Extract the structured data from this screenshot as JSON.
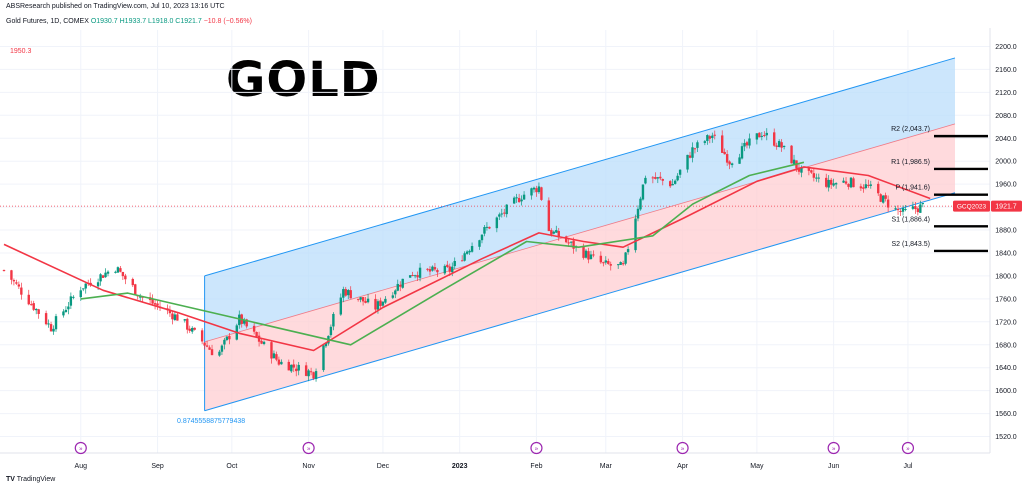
{
  "header": {
    "published": "ABSResearch published on TradingView.com, Jul 10, 2023 13:16 UTC",
    "symbol": "Gold Futures, 1D, COMEX",
    "ohlc_open": "O1930.7",
    "ohlc_rest": "H1933.7 L1918.0 C1921.7",
    "change": "−10.8 (−0.56%)"
  },
  "overlay": {
    "title": "GOLD",
    "level_label": "1950.3",
    "fib_label": "0.8745558875779438"
  },
  "footer": {
    "brand": "TradingView",
    "logo": "TV"
  },
  "price_tag": {
    "ticker": "GCQ2023",
    "price": "1921.7"
  },
  "pivots": [
    {
      "label": "R2 (2,043.7)",
      "value": 2043.7
    },
    {
      "label": "R1 (1,986.5)",
      "value": 1986.5
    },
    {
      "label": "P (1,941.6)",
      "value": 1941.6
    },
    {
      "label": "S1 (1,886.4)",
      "value": 1886.4
    },
    {
      "label": "S2 (1,843.5)",
      "value": 1843.5
    }
  ],
  "colors": {
    "up": "#089981",
    "down": "#f23645",
    "ma_red": "#f23645",
    "ma_green": "#4caf50",
    "channel_blue": "#2196f3",
    "fill_blue": "#bbdefb",
    "fill_red": "#ffcdd2",
    "event": "#9c27b0"
  },
  "chart_data": {
    "type": "candlestick",
    "x_ticks": [
      "Aug",
      "Sep",
      "Oct",
      "Nov",
      "Dec",
      "2023",
      "Feb",
      "Mar",
      "Apr",
      "May",
      "Jun",
      "Jul"
    ],
    "y_ticks": [
      1520,
      1560,
      1600,
      1640,
      1680,
      1720,
      1760,
      1800,
      1840,
      1880,
      1920,
      1960,
      2000,
      2040,
      2080,
      2120,
      2160,
      2200
    ],
    "y_range": [
      1500,
      2220
    ],
    "events_icons": [
      "Aug",
      "Nov",
      "Feb",
      "Apr",
      "Jun",
      "Jul"
    ],
    "close_anchors": [
      [
        "2022-07-01",
        1810
      ],
      [
        "2022-07-20",
        1710
      ],
      [
        "2022-08-01",
        1780
      ],
      [
        "2022-08-15",
        1815
      ],
      [
        "2022-08-25",
        1765
      ],
      [
        "2022-09-10",
        1725
      ],
      [
        "2022-09-25",
        1660
      ],
      [
        "2022-10-04",
        1725
      ],
      [
        "2022-10-20",
        1650
      ],
      [
        "2022-11-03",
        1630
      ],
      [
        "2022-11-15",
        1775
      ],
      [
        "2022-11-28",
        1745
      ],
      [
        "2022-12-12",
        1805
      ],
      [
        "2022-12-28",
        1810
      ],
      [
        "2023-01-10",
        1875
      ],
      [
        "2023-01-26",
        1940
      ],
      [
        "2023-02-02",
        1955
      ],
      [
        "2023-02-06",
        1880
      ],
      [
        "2023-02-20",
        1840
      ],
      [
        "2023-02-28",
        1820
      ],
      [
        "2023-03-08",
        1815
      ],
      [
        "2023-03-17",
        1975
      ],
      [
        "2023-03-28",
        1960
      ],
      [
        "2023-04-05",
        2020
      ],
      [
        "2023-04-13",
        2045
      ],
      [
        "2023-04-20",
        2000
      ],
      [
        "2023-05-03",
        2050
      ],
      [
        "2023-05-11",
        2025
      ],
      [
        "2023-05-19",
        1980
      ],
      [
        "2023-05-30",
        1960
      ],
      [
        "2023-06-06",
        1965
      ],
      [
        "2023-06-15",
        1955
      ],
      [
        "2023-06-26",
        1915
      ],
      [
        "2023-06-29",
        1910
      ],
      [
        "2023-07-07",
        1921.7
      ]
    ],
    "ma_red_anchors": [
      [
        "2022-07-01",
        1855
      ],
      [
        "2022-08-10",
        1775
      ],
      [
        "2022-09-10",
        1735
      ],
      [
        "2022-10-04",
        1700
      ],
      [
        "2022-11-03",
        1670
      ],
      [
        "2022-12-01",
        1745
      ],
      [
        "2023-01-10",
        1830
      ],
      [
        "2023-02-02",
        1875
      ],
      [
        "2023-02-20",
        1860
      ],
      [
        "2023-03-08",
        1850
      ],
      [
        "2023-04-01",
        1900
      ],
      [
        "2023-05-01",
        1965
      ],
      [
        "2023-05-20",
        1990
      ],
      [
        "2023-06-15",
        1975
      ],
      [
        "2023-07-10",
        1935
      ]
    ],
    "ma_green_anchors": [
      [
        "2022-08-01",
        1760
      ],
      [
        "2022-08-20",
        1770
      ],
      [
        "2022-11-18",
        1680
      ],
      [
        "2022-12-25",
        1775
      ],
      [
        "2023-01-28",
        1860
      ],
      [
        "2023-02-18",
        1850
      ],
      [
        "2023-03-20",
        1870
      ],
      [
        "2023-04-05",
        1925
      ],
      [
        "2023-04-28",
        1975
      ],
      [
        "2023-05-20",
        1998
      ]
    ],
    "channel": {
      "lower": [
        [
          "2022-09-20",
          1565
        ],
        [
          "2023-07-20",
          1945
        ]
      ],
      "middle": [
        [
          "2022-09-20",
          1685
        ],
        [
          "2023-07-20",
          2065
        ]
      ],
      "upper": [
        [
          "2022-09-20",
          1800
        ],
        [
          "2023-07-20",
          2180
        ]
      ]
    },
    "last_price": 1921.7
  }
}
